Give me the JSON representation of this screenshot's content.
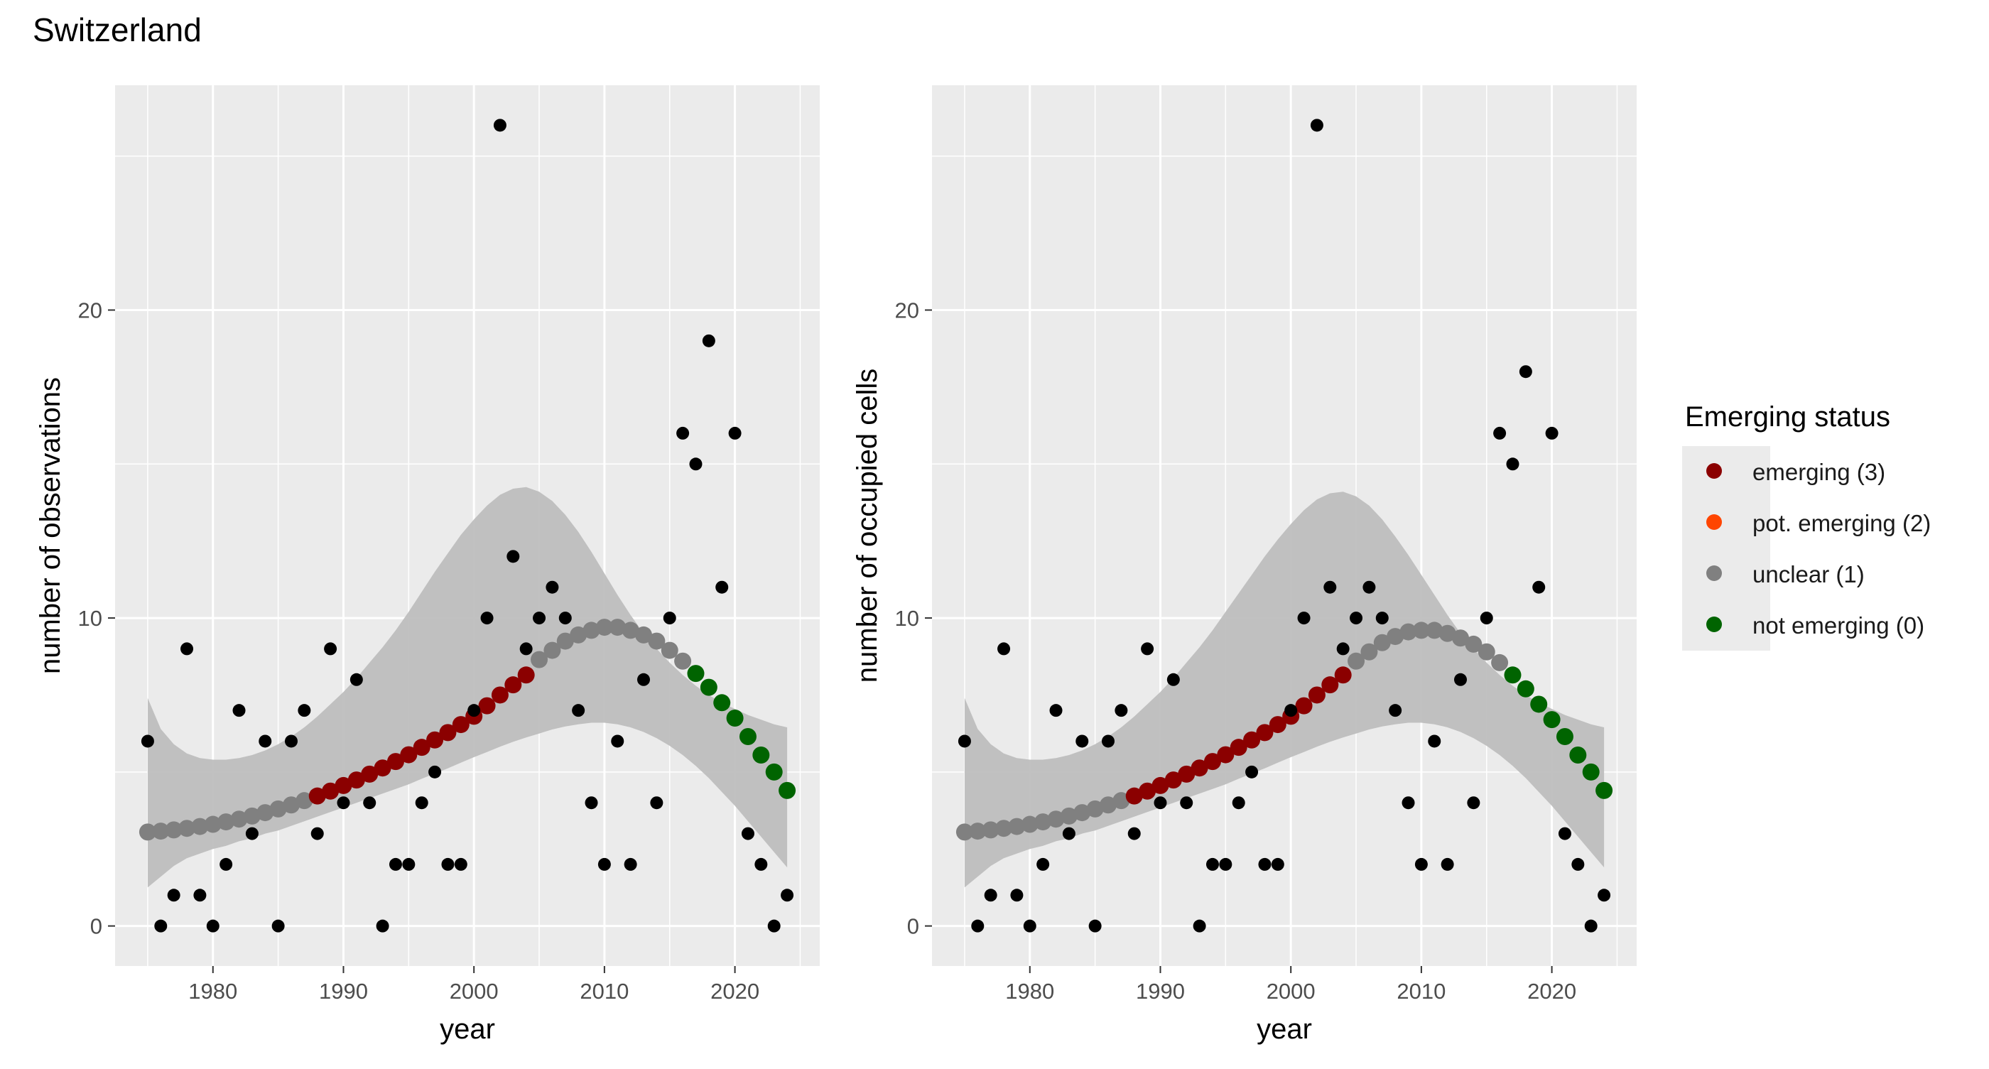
{
  "page": {
    "title": "Switzerland"
  },
  "legend": {
    "title": "Emerging status",
    "items": [
      {
        "label": "emerging (3)",
        "color": "#8B0000"
      },
      {
        "label": "pot. emerging (2)",
        "color": "#FF4500"
      },
      {
        "label": "unclear (1)",
        "color": "#808080"
      },
      {
        "label": "not emerging (0)",
        "color": "#006400"
      }
    ]
  },
  "chart_data": [
    {
      "type": "scatter",
      "xlabel": "year",
      "ylabel": "number of observations",
      "xlim": [
        1972.5,
        2026.5
      ],
      "ylim": [
        -1.3,
        27.3
      ],
      "xticks": [
        1980,
        1990,
        2000,
        2010,
        2020
      ],
      "yticks": [
        0,
        10,
        20
      ],
      "grid": true,
      "observed": {
        "x": [
          1975,
          1976,
          1977,
          1978,
          1979,
          1980,
          1981,
          1982,
          1983,
          1984,
          1985,
          1986,
          1987,
          1988,
          1989,
          1990,
          1991,
          1992,
          1993,
          1994,
          1995,
          1996,
          1997,
          1998,
          1999,
          2000,
          2001,
          2002,
          2003,
          2004,
          2005,
          2006,
          2007,
          2008,
          2009,
          2010,
          2011,
          2012,
          2013,
          2014,
          2015,
          2016,
          2017,
          2018,
          2019,
          2020,
          2021,
          2022,
          2023,
          2024
        ],
        "y": [
          6,
          0,
          1,
          9,
          1,
          0,
          2,
          7,
          3,
          6,
          0,
          6,
          7,
          3,
          9,
          4,
          8,
          4,
          0,
          2,
          2,
          4,
          5,
          2,
          2,
          7,
          10,
          26,
          12,
          9,
          10,
          11,
          10,
          7,
          4,
          2,
          6,
          2,
          8,
          4,
          10,
          16,
          15,
          19,
          11,
          16,
          3,
          2,
          0,
          1
        ],
        "color": "#000000"
      },
      "fit": {
        "x": [
          1975,
          1976,
          1977,
          1978,
          1979,
          1980,
          1981,
          1982,
          1983,
          1984,
          1985,
          1986,
          1987,
          1988,
          1989,
          1990,
          1991,
          1992,
          1993,
          1994,
          1995,
          1996,
          1997,
          1998,
          1999,
          2000,
          2001,
          2002,
          2003,
          2004,
          2005,
          2006,
          2007,
          2008,
          2009,
          2010,
          2011,
          2012,
          2013,
          2014,
          2015,
          2016,
          2017,
          2018,
          2019,
          2020,
          2021,
          2022,
          2023,
          2024
        ],
        "y": [
          3.05,
          3.08,
          3.12,
          3.17,
          3.23,
          3.3,
          3.38,
          3.47,
          3.57,
          3.68,
          3.8,
          3.93,
          4.07,
          4.22,
          4.38,
          4.56,
          4.74,
          4.93,
          5.13,
          5.34,
          5.56,
          5.8,
          6.04,
          6.28,
          6.54,
          6.81,
          7.15,
          7.5,
          7.83,
          8.15,
          8.65,
          8.95,
          9.25,
          9.45,
          9.6,
          9.7,
          9.7,
          9.6,
          9.45,
          9.25,
          8.95,
          8.6,
          8.2,
          7.75,
          7.25,
          6.75,
          6.15,
          5.55,
          5.0,
          4.4
        ],
        "status": [
          1,
          1,
          1,
          1,
          1,
          1,
          1,
          1,
          1,
          1,
          1,
          1,
          1,
          3,
          3,
          3,
          3,
          3,
          3,
          3,
          3,
          3,
          3,
          3,
          3,
          3,
          3,
          3,
          3,
          3,
          1,
          1,
          1,
          1,
          1,
          1,
          1,
          1,
          1,
          1,
          1,
          1,
          0,
          0,
          0,
          0,
          0,
          0,
          0,
          0
        ],
        "lower": [
          1.25,
          1.6,
          1.95,
          2.2,
          2.35,
          2.5,
          2.6,
          2.75,
          2.85,
          3.0,
          3.1,
          3.25,
          3.4,
          3.55,
          3.7,
          3.85,
          4.0,
          4.15,
          4.3,
          4.45,
          4.6,
          4.78,
          4.95,
          5.12,
          5.3,
          5.48,
          5.65,
          5.82,
          5.98,
          6.12,
          6.25,
          6.38,
          6.48,
          6.55,
          6.6,
          6.6,
          6.55,
          6.45,
          6.3,
          6.1,
          5.85,
          5.55,
          5.2,
          4.8,
          4.35,
          3.9,
          3.4,
          2.9,
          2.4,
          1.9
        ],
        "upper": [
          7.4,
          6.4,
          5.9,
          5.6,
          5.45,
          5.4,
          5.4,
          5.45,
          5.55,
          5.7,
          5.9,
          6.15,
          6.45,
          6.8,
          7.2,
          7.6,
          8.05,
          8.55,
          9.05,
          9.6,
          10.2,
          10.85,
          11.5,
          12.1,
          12.7,
          13.2,
          13.65,
          14.0,
          14.2,
          14.25,
          14.1,
          13.8,
          13.35,
          12.8,
          12.15,
          11.45,
          10.75,
          10.1,
          9.5,
          9.0,
          8.55,
          8.15,
          7.8,
          7.5,
          7.25,
          7.05,
          6.85,
          6.7,
          6.55,
          6.45
        ]
      }
    },
    {
      "type": "scatter",
      "xlabel": "year",
      "ylabel": "number of occupied cells",
      "xlim": [
        1972.5,
        2026.5
      ],
      "ylim": [
        -1.3,
        27.3
      ],
      "xticks": [
        1980,
        1990,
        2000,
        2010,
        2020
      ],
      "yticks": [
        0,
        10,
        20
      ],
      "grid": true,
      "observed": {
        "x": [
          1975,
          1976,
          1977,
          1978,
          1979,
          1980,
          1981,
          1982,
          1983,
          1984,
          1985,
          1986,
          1987,
          1988,
          1989,
          1990,
          1991,
          1992,
          1993,
          1994,
          1995,
          1996,
          1997,
          1998,
          1999,
          2000,
          2001,
          2002,
          2003,
          2004,
          2005,
          2006,
          2007,
          2008,
          2009,
          2010,
          2011,
          2012,
          2013,
          2014,
          2015,
          2016,
          2017,
          2018,
          2019,
          2020,
          2021,
          2022,
          2023,
          2024
        ],
        "y": [
          6,
          0,
          1,
          9,
          1,
          0,
          2,
          7,
          3,
          6,
          0,
          6,
          7,
          3,
          9,
          4,
          8,
          4,
          0,
          2,
          2,
          4,
          5,
          2,
          2,
          7,
          10,
          26,
          11,
          9,
          10,
          11,
          10,
          7,
          4,
          2,
          6,
          2,
          8,
          4,
          10,
          16,
          15,
          18,
          11,
          16,
          3,
          2,
          0,
          1
        ],
        "color": "#000000"
      },
      "fit": {
        "x": [
          1975,
          1976,
          1977,
          1978,
          1979,
          1980,
          1981,
          1982,
          1983,
          1984,
          1985,
          1986,
          1987,
          1988,
          1989,
          1990,
          1991,
          1992,
          1993,
          1994,
          1995,
          1996,
          1997,
          1998,
          1999,
          2000,
          2001,
          2002,
          2003,
          2004,
          2005,
          2006,
          2007,
          2008,
          2009,
          2010,
          2011,
          2012,
          2013,
          2014,
          2015,
          2016,
          2017,
          2018,
          2019,
          2020,
          2021,
          2022,
          2023,
          2024
        ],
        "y": [
          3.05,
          3.08,
          3.12,
          3.17,
          3.23,
          3.3,
          3.38,
          3.47,
          3.57,
          3.68,
          3.8,
          3.93,
          4.07,
          4.22,
          4.38,
          4.56,
          4.74,
          4.93,
          5.13,
          5.34,
          5.56,
          5.8,
          6.04,
          6.28,
          6.54,
          6.81,
          7.15,
          7.5,
          7.83,
          8.15,
          8.6,
          8.9,
          9.2,
          9.4,
          9.55,
          9.6,
          9.6,
          9.5,
          9.35,
          9.15,
          8.9,
          8.55,
          8.15,
          7.7,
          7.2,
          6.7,
          6.15,
          5.55,
          5.0,
          4.4
        ],
        "status": [
          1,
          1,
          1,
          1,
          1,
          1,
          1,
          1,
          1,
          1,
          1,
          1,
          1,
          3,
          3,
          3,
          3,
          3,
          3,
          3,
          3,
          3,
          3,
          3,
          3,
          3,
          3,
          3,
          3,
          3,
          1,
          1,
          1,
          1,
          1,
          1,
          1,
          1,
          1,
          1,
          1,
          1,
          0,
          0,
          0,
          0,
          0,
          0,
          0,
          0
        ],
        "lower": [
          1.25,
          1.6,
          1.95,
          2.2,
          2.35,
          2.5,
          2.6,
          2.75,
          2.85,
          3.0,
          3.1,
          3.25,
          3.4,
          3.55,
          3.7,
          3.85,
          4.0,
          4.15,
          4.3,
          4.45,
          4.6,
          4.78,
          4.95,
          5.12,
          5.3,
          5.48,
          5.65,
          5.82,
          5.98,
          6.12,
          6.25,
          6.38,
          6.48,
          6.55,
          6.6,
          6.6,
          6.55,
          6.45,
          6.3,
          6.1,
          5.85,
          5.55,
          5.2,
          4.8,
          4.35,
          3.9,
          3.4,
          2.9,
          2.4,
          1.9
        ],
        "upper": [
          7.4,
          6.4,
          5.9,
          5.6,
          5.45,
          5.4,
          5.4,
          5.45,
          5.55,
          5.7,
          5.9,
          6.15,
          6.45,
          6.8,
          7.2,
          7.6,
          8.05,
          8.55,
          9.05,
          9.6,
          10.2,
          10.8,
          11.4,
          12.0,
          12.55,
          13.05,
          13.5,
          13.85,
          14.05,
          14.1,
          13.95,
          13.65,
          13.2,
          12.65,
          12.05,
          11.4,
          10.75,
          10.1,
          9.5,
          9.0,
          8.55,
          8.15,
          7.8,
          7.5,
          7.25,
          7.05,
          6.85,
          6.7,
          6.55,
          6.45
        ]
      }
    }
  ]
}
